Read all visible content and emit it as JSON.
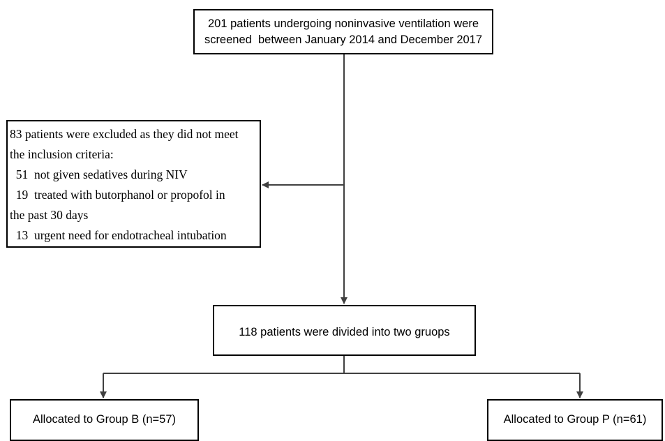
{
  "flowchart": {
    "screened": {
      "lines": [
        "201 patients undergoing noninvasive ventilation were",
        "screened  between January 2014 and December 2017"
      ]
    },
    "excluded": {
      "lines": [
        "83 patients were excluded as they did not meet",
        "the inclusion criteria:",
        "  51  not given sedatives during NIV",
        "  19  treated with butorphanol or propofol in",
        "the past 30 days",
        "  13  urgent need for endotracheal intubation"
      ]
    },
    "divided": {
      "label": "118 patients were divided into two gruops"
    },
    "group_b": {
      "label": "Allocated to Group B (n=57)"
    },
    "group_p": {
      "label": "Allocated to Group P (n=61)"
    },
    "colors": {
      "line": "#404040",
      "border": "#000000"
    }
  }
}
